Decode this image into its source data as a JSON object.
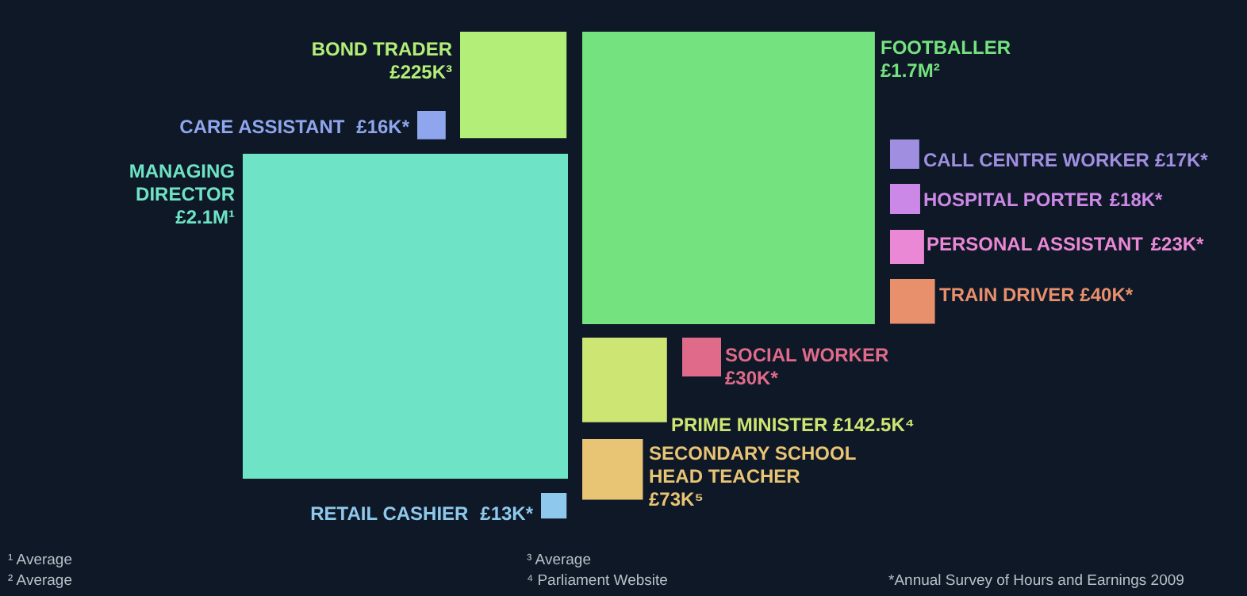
{
  "chart_data": {
    "type": "other",
    "categories": [
      "BOND TRADER",
      "CARE ASSISTANT",
      "MANAGING DIRECTOR",
      "FOOTBALLER",
      "CALL CENTRE WORKER",
      "HOSPITAL PORTER",
      "PERSONAL ASSISTANT",
      "TRAIN DRIVER",
      "SOCIAL WORKER",
      "PRIME MINISTER",
      "SECONDARY SCHOOL HEAD TEACHER",
      "RETAIL CASHIER"
    ],
    "values": [
      225000,
      16000,
      2100000,
      1700000,
      17000,
      18000,
      23000,
      40000,
      30000,
      142500,
      73000,
      13000
    ],
    "value_labels": [
      "£225K³",
      "£16K*",
      "£2.1M¹",
      "£1.7M²",
      "£17K*",
      "£18K*",
      "£23K*",
      "£40K*",
      "£30K*",
      "£142.5K⁴",
      "£73K⁵",
      "£13K*"
    ],
    "colors": [
      "#b3ee78",
      "#8fa6ee",
      "#6ee3c6",
      "#74e27e",
      "#a08ee0",
      "#cc88e6",
      "#ea88d6",
      "#e88f6c",
      "#e06a8a",
      "#cde572",
      "#e8c475",
      "#8ec8ec"
    ],
    "annotations": [
      "¹ Average",
      "² Average",
      "³ Average",
      "⁴ Parliament Website",
      "*Annual Survey of Hours and Earnings 2009"
    ]
  }
}
